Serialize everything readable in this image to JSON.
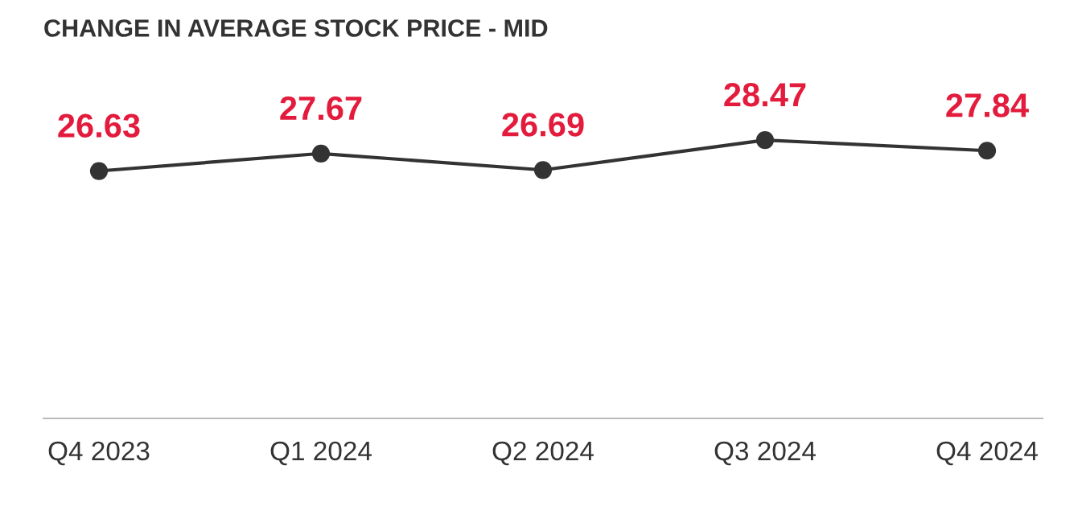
{
  "chart_data": {
    "type": "line",
    "title": "CHANGE IN AVERAGE STOCK PRICE - MID",
    "categories": [
      "Q4 2023",
      "Q1 2024",
      "Q2 2024",
      "Q3 2024",
      "Q4 2024"
    ],
    "series": [
      {
        "color": "#333333",
        "values": [
          26.63,
          27.67,
          26.69,
          28.47,
          27.84
        ]
      }
    ],
    "tick_labels": "x",
    "data_labels": true,
    "marker": "circle",
    "line_style": "solid",
    "grid": false,
    "legend": false
  }
}
